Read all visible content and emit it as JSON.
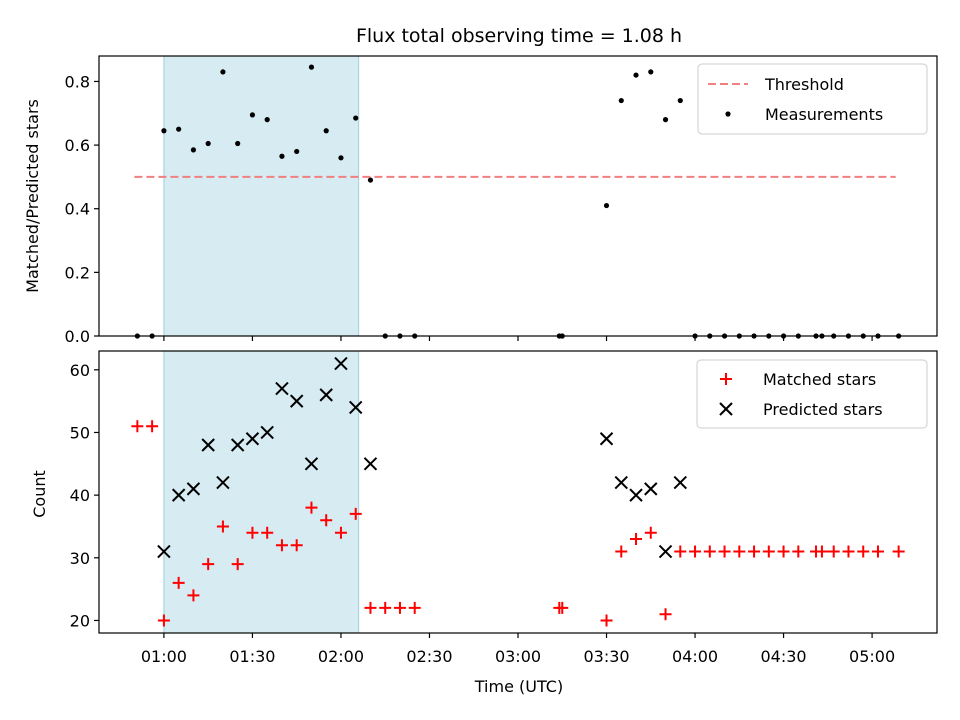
{
  "chart_data": {
    "title": "Flux total observing time = 1.08 h",
    "xlabel": "Time (UTC)",
    "x_ticks": [
      "01:00",
      "01:30",
      "02:00",
      "02:30",
      "03:00",
      "03:30",
      "04:00",
      "04:30",
      "05:00"
    ],
    "x_tick_minutes": [
      60,
      90,
      120,
      150,
      180,
      210,
      240,
      270,
      300
    ],
    "xlim_minutes": [
      38,
      322
    ],
    "highlight_span_minutes": [
      60,
      126
    ],
    "panels": [
      {
        "type": "scatter",
        "ylabel": "Matched/Predicted stars",
        "ylim": [
          0,
          0.88
        ],
        "y_ticks": [
          0.0,
          0.2,
          0.4,
          0.6,
          0.8
        ],
        "y_tick_labels": [
          "0.0",
          "0.2",
          "0.4",
          "0.6",
          "0.8"
        ],
        "threshold": {
          "name": "Threshold",
          "value": 0.5,
          "x_range_minutes": [
            50,
            308
          ],
          "color": "#f08080"
        },
        "measurements": {
          "name": "Measurements",
          "color": "#000000",
          "x": [
            51,
            56,
            60,
            65,
            70,
            75,
            80,
            85,
            90,
            95,
            100,
            105,
            110,
            115,
            120,
            125,
            130,
            135,
            140,
            145,
            194,
            195,
            210,
            215,
            220,
            225,
            230,
            235,
            240,
            245,
            250,
            255,
            260,
            265,
            270,
            275,
            281,
            283,
            287,
            292,
            297,
            302,
            309
          ],
          "y": [
            0.0,
            0.0,
            0.645,
            0.65,
            0.585,
            0.605,
            0.83,
            0.605,
            0.695,
            0.68,
            0.565,
            0.58,
            0.845,
            0.645,
            0.56,
            0.685,
            0.49,
            0.0,
            0.0,
            0.0,
            0.0,
            0.0,
            0.41,
            0.74,
            0.82,
            0.83,
            0.68,
            0.74,
            0.0,
            0.0,
            0.0,
            0.0,
            0.0,
            0.0,
            0.0,
            0.0,
            0.0,
            0.0,
            0.0,
            0.0,
            0.0,
            0.0,
            0.0
          ]
        },
        "legend": [
          "Threshold",
          "Measurements"
        ]
      },
      {
        "type": "scatter",
        "ylabel": "Count",
        "ylim": [
          18,
          63
        ],
        "y_ticks": [
          20,
          30,
          40,
          50,
          60
        ],
        "y_tick_labels": [
          "20",
          "30",
          "40",
          "50",
          "60"
        ],
        "series": [
          {
            "name": "Matched stars",
            "marker": "plus",
            "color": "#ff0000",
            "x": [
              51,
              56,
              60,
              65,
              70,
              75,
              80,
              85,
              90,
              95,
              100,
              105,
              110,
              115,
              120,
              125,
              130,
              135,
              140,
              145,
              194,
              195,
              210,
              215,
              220,
              225,
              230,
              235,
              240,
              245,
              250,
              255,
              260,
              265,
              270,
              275,
              281,
              283,
              287,
              292,
              297,
              302,
              309
            ],
            "y": [
              51,
              51,
              20,
              26,
              24,
              29,
              35,
              29,
              34,
              34,
              32,
              32,
              38,
              36,
              34,
              37,
              22,
              22,
              22,
              22,
              22,
              22,
              20,
              31,
              33,
              34,
              21,
              31,
              31,
              31,
              31,
              31,
              31,
              31,
              31,
              31,
              31,
              31,
              31,
              31,
              31,
              31,
              31
            ]
          },
          {
            "name": "Predicted stars",
            "marker": "x",
            "color": "#000000",
            "x": [
              60,
              65,
              70,
              75,
              80,
              85,
              90,
              95,
              100,
              105,
              110,
              115,
              120,
              125,
              130,
              210,
              215,
              220,
              225,
              230,
              235
            ],
            "y": [
              31,
              40,
              41,
              48,
              42,
              48,
              49,
              50,
              57,
              55,
              45,
              56,
              61,
              54,
              45,
              49,
              42,
              40,
              41,
              31,
              42
            ]
          }
        ],
        "legend": [
          "Matched stars",
          "Predicted stars"
        ]
      }
    ]
  }
}
